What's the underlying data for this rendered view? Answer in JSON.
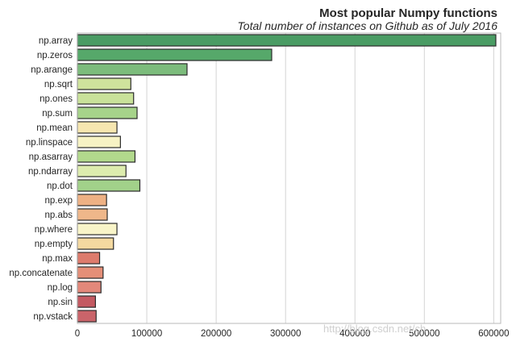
{
  "chart_data": {
    "type": "bar",
    "orientation": "horizontal",
    "title": "Most popular Numpy functions",
    "subtitle": "Total number of instances on Github as of July 2016",
    "categories": [
      "np.array",
      "np.zeros",
      "np.arange",
      "np.sqrt",
      "np.ones",
      "np.sum",
      "np.mean",
      "np.linspace",
      "np.asarray",
      "np.ndarray",
      "np.dot",
      "np.exp",
      "np.abs",
      "np.where",
      "np.empty",
      "np.max",
      "np.concatenate",
      "np.log",
      "np.sin",
      "np.vstack"
    ],
    "values": [
      603000,
      280000,
      158000,
      77000,
      81000,
      86000,
      57000,
      62000,
      83000,
      70000,
      90000,
      42000,
      43000,
      57000,
      52000,
      32000,
      37000,
      34000,
      26000,
      27000
    ],
    "colors": [
      "#4a9c64",
      "#56a86a",
      "#7cbc7c",
      "#cfe39c",
      "#c9e29a",
      "#a6d38a",
      "#f6e6b0",
      "#f7f3c4",
      "#b2d98c",
      "#ddecae",
      "#a2d18a",
      "#eeb184",
      "#efb78a",
      "#f8f4c8",
      "#f4d9a0",
      "#dd7b6c",
      "#e58f78",
      "#e3887a",
      "#c45a62",
      "#ca646a"
    ],
    "xlim": [
      0,
      610000
    ],
    "xticks": [
      0,
      100000,
      200000,
      300000,
      400000,
      500000,
      600000
    ],
    "xtick_labels": [
      "0",
      "100000",
      "200000",
      "300000",
      "400000",
      "500000",
      "600000"
    ],
    "xlabel": "",
    "ylabel": "",
    "grid": "vertical"
  },
  "watermark": "http://blog.csdn.net/ch..."
}
